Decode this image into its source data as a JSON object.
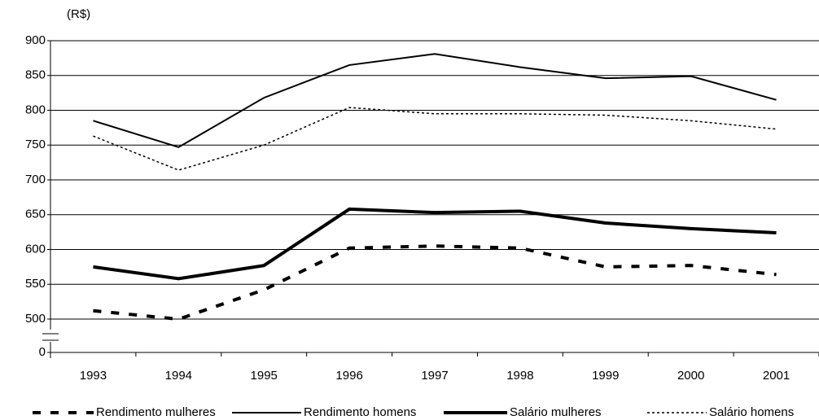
{
  "chart_data": {
    "type": "line",
    "ylabel": "(R$)",
    "categories": [
      "1993",
      "1994",
      "1995",
      "1996",
      "1997",
      "1998",
      "1999",
      "2000",
      "2001"
    ],
    "series": [
      {
        "name": "Rendimento mulheres",
        "color": "#000000",
        "style": "dashed",
        "line_width": 4,
        "values": [
          512,
          499,
          542,
          602,
          605,
          602,
          575,
          577,
          564
        ]
      },
      {
        "name": "Rendimento homens",
        "color": "#000000",
        "style": "solid",
        "line_width": 2,
        "values": [
          785,
          747,
          818,
          865,
          881,
          862,
          846,
          849,
          815
        ]
      },
      {
        "name": "Salário mulheres",
        "color": "#000000",
        "style": "solid",
        "line_width": 4,
        "values": [
          575,
          558,
          577,
          658,
          653,
          655,
          638,
          630,
          624
        ]
      },
      {
        "name": "Salário homens",
        "color": "#000000",
        "style": "dotted",
        "line_width": 1.5,
        "values": [
          763,
          714,
          750,
          804,
          795,
          795,
          793,
          785,
          773
        ]
      }
    ],
    "ylim": [
      0,
      900
    ],
    "yticks": [
      0,
      500,
      550,
      600,
      650,
      700,
      750,
      800,
      850,
      900
    ],
    "axis_break": true,
    "grid": true,
    "legend": "bottom"
  }
}
